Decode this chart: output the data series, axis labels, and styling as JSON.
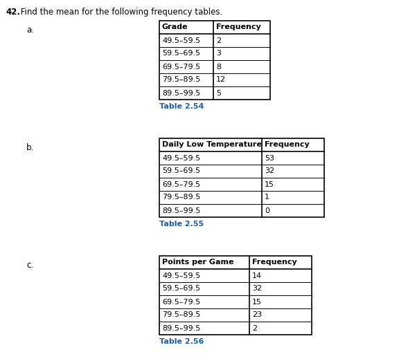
{
  "title_num": "42.",
  "title_rest": " Find the mean for the following frequency tables.",
  "title_fontsize": 8.5,
  "table_a": {
    "label": "a.",
    "col1_header": "Grade",
    "col2_header": "Frequency",
    "rows": [
      [
        "49.5–59.5",
        "2"
      ],
      [
        "59.5–69.5",
        "3"
      ],
      [
        "69.5–79.5",
        "8"
      ],
      [
        "79.5–89.5",
        "12"
      ],
      [
        "89.5–99.5",
        "5"
      ]
    ],
    "caption": "Table 2.54",
    "caption_color": "#1a5fa8"
  },
  "table_b": {
    "label": "b.",
    "col1_header": "Daily Low Temperature",
    "col2_header": "Frequency",
    "rows": [
      [
        "49.5–59.5",
        "53"
      ],
      [
        "59.5–69.5",
        "32"
      ],
      [
        "69.5–79.5",
        "15"
      ],
      [
        "79.5–89.5",
        "1"
      ],
      [
        "89.5–99.5",
        "0"
      ]
    ],
    "caption": "Table 2.55",
    "caption_color": "#1a5fa8"
  },
  "table_c": {
    "label": "c.",
    "col1_header": "Points per Game",
    "col2_header": "Frequency",
    "rows": [
      [
        "49.5–59.5",
        "14"
      ],
      [
        "59.5–69.5",
        "32"
      ],
      [
        "69.5–79.5",
        "15"
      ],
      [
        "79.5–89.5",
        "23"
      ],
      [
        "89.5–99.5",
        "2"
      ]
    ],
    "caption": "Table 2.56",
    "caption_color": "#1a5fa8"
  },
  "background_color": "#ffffff",
  "border_color": "#000000",
  "header_fontsize": 8.0,
  "cell_fontsize": 8.0,
  "label_fontsize": 8.5,
  "caption_fontsize": 8.0
}
